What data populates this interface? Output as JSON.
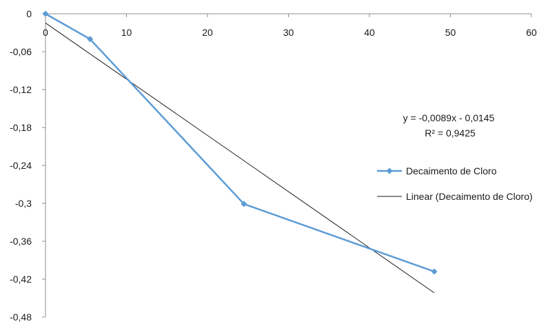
{
  "chart_data": {
    "type": "line",
    "title": "",
    "xlabel": "",
    "ylabel": "",
    "xlim": [
      0,
      60
    ],
    "ylim": [
      -0.48,
      0
    ],
    "x_ticks": [
      0,
      10,
      20,
      30,
      40,
      50,
      60
    ],
    "y_ticks": [
      0,
      -0.06,
      -0.12,
      -0.18,
      -0.24,
      -0.3,
      -0.36,
      -0.42,
      -0.48
    ],
    "x_tick_labels": [
      "0",
      "10",
      "20",
      "30",
      "40",
      "50",
      "60"
    ],
    "y_tick_labels": [
      "0",
      "-0,06",
      "-0,12",
      "-0,18",
      "-0,24",
      "-0,3",
      "-0,36",
      "-0,42",
      "-0,48"
    ],
    "grid": false,
    "series": [
      {
        "name": "Decaimento de Cloro",
        "color": "#5b9bd5",
        "marker": "diamond",
        "x": [
          0,
          5.5,
          24.5,
          48
        ],
        "y": [
          0,
          -0.04,
          -0.301,
          -0.408
        ]
      }
    ],
    "trendline": {
      "name": "Linear (Decaimento de Cloro)",
      "color": "#1a1a1a",
      "slope": -0.0089,
      "intercept": -0.0145,
      "x_range": [
        0,
        48
      ]
    },
    "annotation": {
      "equation": "y = -0,0089x - 0,0145",
      "r_squared": "R² = 0,9425"
    },
    "legend_position": "right"
  }
}
